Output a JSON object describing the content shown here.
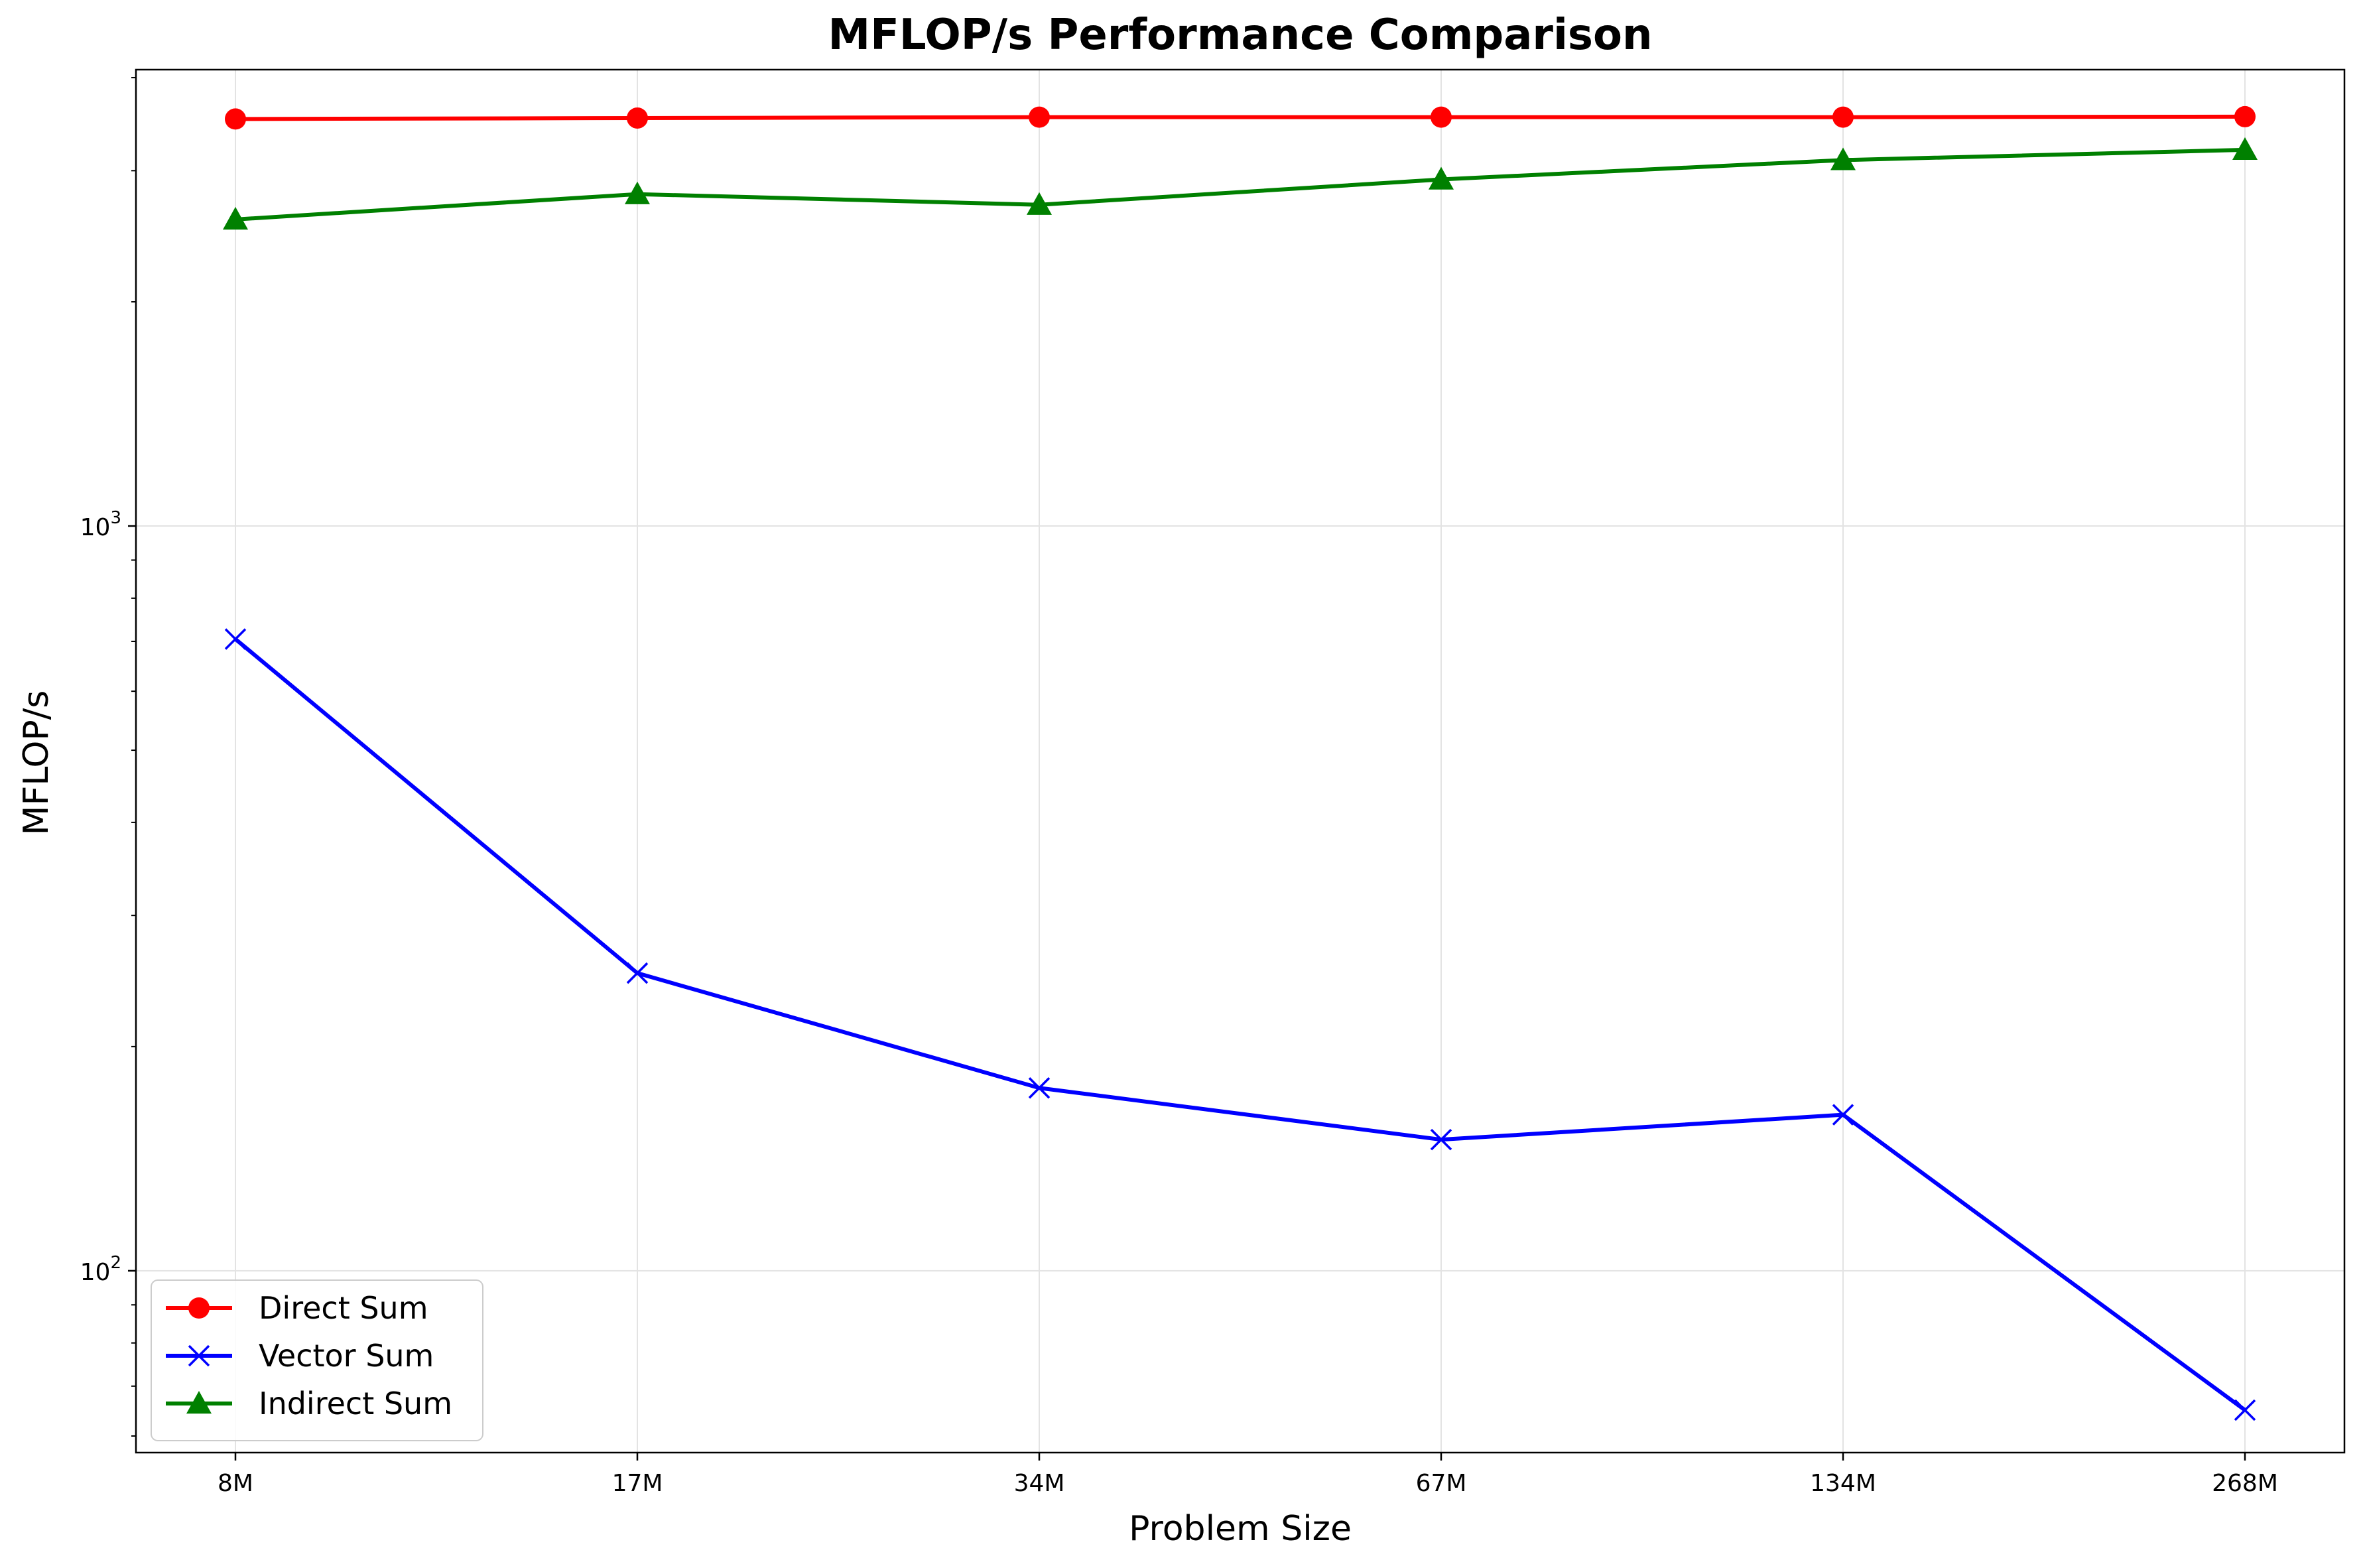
{
  "chart_data": {
    "type": "line",
    "title": "MFLOP/s Performance Comparison",
    "xlabel": "Problem Size",
    "ylabel": "MFLOP/s",
    "categories": [
      "8M",
      "17M",
      "34M",
      "67M",
      "134M",
      "268M"
    ],
    "y_scale": "log",
    "ylim": [
      57,
      4100
    ],
    "y_major_ticks": [
      {
        "value": 100,
        "base": "10",
        "exp": "2"
      },
      {
        "value": 1000,
        "base": "10",
        "exp": "3"
      }
    ],
    "y_minor_ticks": [
      60,
      70,
      80,
      90,
      200,
      300,
      400,
      500,
      600,
      700,
      800,
      900,
      2000,
      3000,
      4000
    ],
    "grid": true,
    "legend_position": "lower-left",
    "series": [
      {
        "name": "Direct Sum",
        "color": "#ff0000",
        "marker": "circle",
        "values": [
          3520,
          3530,
          3540,
          3540,
          3540,
          3545
        ]
      },
      {
        "name": "Vector Sum",
        "color": "#0000ff",
        "marker": "x",
        "values": [
          705,
          251,
          176,
          150,
          162,
          65
        ]
      },
      {
        "name": "Indirect Sum",
        "color": "#008000",
        "marker": "triangle",
        "values": [
          2580,
          2790,
          2700,
          2920,
          3100,
          3200
        ]
      }
    ]
  }
}
